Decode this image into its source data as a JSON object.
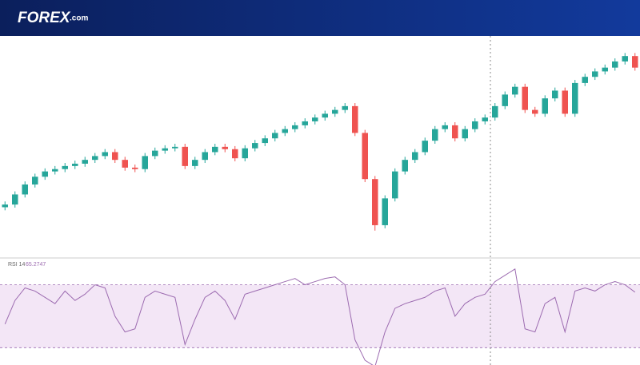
{
  "header": {
    "logo": "FOREX",
    "logo_suffix": ".com"
  },
  "chart_data": [
    {
      "type": "candlestick",
      "up_color": "#26a69a",
      "down_color": "#ef5350",
      "ylim": [
        1860,
        3600
      ],
      "open": [
        2240,
        2262,
        2344,
        2425,
        2488,
        2531,
        2550,
        2575,
        2594,
        2625,
        2656,
        2688,
        2625,
        2562,
        2550,
        2656,
        2700,
        2719,
        2731,
        2575,
        2625,
        2688,
        2731,
        2712,
        2638,
        2719,
        2762,
        2800,
        2844,
        2875,
        2906,
        2938,
        2969,
        3000,
        3031,
        3062,
        2844,
        2469,
        2094,
        2312,
        2531,
        2625,
        2688,
        2781,
        2875,
        2906,
        2800,
        2875,
        2938,
        2969,
        3062,
        3156,
        3219,
        3031,
        3000,
        3125,
        3188,
        3000,
        3250,
        3300,
        3344,
        3375,
        3425,
        3469
      ],
      "high": [
        2287,
        2369,
        2450,
        2513,
        2556,
        2575,
        2600,
        2619,
        2650,
        2681,
        2713,
        2713,
        2650,
        2587,
        2681,
        2725,
        2744,
        2756,
        2756,
        2650,
        2713,
        2756,
        2756,
        2737,
        2744,
        2787,
        2825,
        2869,
        2900,
        2931,
        2963,
        2994,
        3025,
        3056,
        3087,
        3087,
        2869,
        2494,
        2337,
        2556,
        2650,
        2713,
        2806,
        2900,
        2931,
        2931,
        2900,
        2963,
        2994,
        3087,
        3181,
        3244,
        3244,
        3056,
        3150,
        3213,
        3213,
        3275,
        3325,
        3369,
        3400,
        3450,
        3494,
        3494
      ],
      "low": [
        2215,
        2237,
        2319,
        2400,
        2463,
        2506,
        2525,
        2550,
        2569,
        2600,
        2631,
        2600,
        2537,
        2525,
        2525,
        2631,
        2675,
        2694,
        2550,
        2550,
        2600,
        2663,
        2687,
        2613,
        2613,
        2694,
        2737,
        2775,
        2819,
        2850,
        2881,
        2913,
        2944,
        2975,
        3006,
        2819,
        2444,
        2050,
        2069,
        2287,
        2506,
        2600,
        2663,
        2756,
        2850,
        2775,
        2775,
        2850,
        2913,
        2944,
        3037,
        3131,
        3006,
        2975,
        2975,
        3100,
        2975,
        2975,
        3225,
        3275,
        3319,
        3350,
        3400,
        3350
      ],
      "close": [
        2262,
        2344,
        2425,
        2488,
        2531,
        2550,
        2575,
        2594,
        2625,
        2656,
        2688,
        2625,
        2562,
        2550,
        2656,
        2700,
        2719,
        2731,
        2575,
        2625,
        2688,
        2731,
        2712,
        2638,
        2719,
        2762,
        2800,
        2844,
        2875,
        2906,
        2938,
        2969,
        3000,
        3031,
        3062,
        2844,
        2469,
        2094,
        2312,
        2531,
        2625,
        2688,
        2781,
        2875,
        2906,
        2800,
        2875,
        2938,
        2969,
        3062,
        3156,
        3219,
        3031,
        3000,
        3125,
        3188,
        3000,
        3250,
        3300,
        3344,
        3375,
        3425,
        3469,
        3375
      ]
    },
    {
      "type": "line",
      "title": "RSI 14",
      "color": "#9c6bb0",
      "band_color": "#f3e6f6",
      "ylim": [
        19,
        86
      ],
      "levels": [
        30,
        70
      ],
      "values": [
        45,
        60,
        68,
        66,
        62,
        58,
        66,
        60,
        64,
        70,
        68,
        50,
        40,
        42,
        62,
        66,
        64,
        62,
        32,
        48,
        62,
        66,
        60,
        48,
        64,
        66,
        68,
        70,
        72,
        74,
        70,
        72,
        74,
        75,
        70,
        35,
        22,
        18,
        40,
        55,
        58,
        60,
        62,
        66,
        68,
        50,
        58,
        62,
        64,
        72,
        76,
        80,
        42,
        40,
        58,
        62,
        40,
        66,
        68,
        66,
        70,
        72,
        70,
        65.2747
      ]
    }
  ]
}
